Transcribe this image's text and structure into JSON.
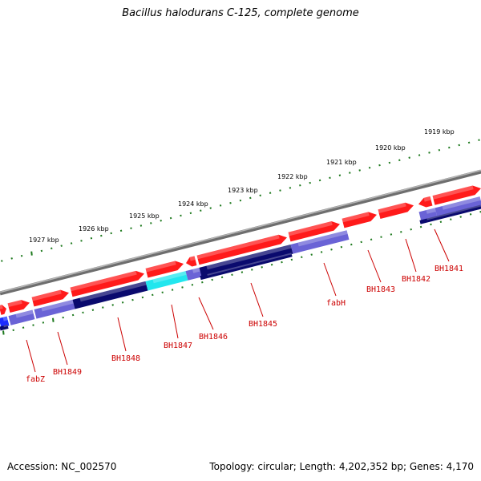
{
  "title": "Bacillus halodurans C-125, complete genome",
  "footer": {
    "accession": "Accession: NC_002570",
    "info": "Topology: circular; Length: 4,202,352 bp; Genes: 4,170"
  },
  "colors": {
    "forward_gene": "#ff1a1a",
    "reverse_gene_dark": "#0a0a6e",
    "reverse_gene_light": "#6a63d6",
    "reverse_gene_cyan": "#22e6ee",
    "reverse_gene_blue": "#1d2cff",
    "scale_tick": "#1f7a1f",
    "backbone": "#8a8a8a",
    "label": "#cc0000"
  },
  "scale_labels": [
    "1927 kbp",
    "1926 kbp",
    "1925 kbp",
    "1924 kbp",
    "1923 kbp",
    "1922 kbp",
    "1921 kbp",
    "1920 kbp",
    "1919 kbp"
  ],
  "gene_labels": [
    "fabZ",
    "BH1849",
    "BH1848",
    "BH1847",
    "BH1846",
    "BH1845",
    "fabH",
    "BH1843",
    "BH1842",
    "BH1841"
  ]
}
